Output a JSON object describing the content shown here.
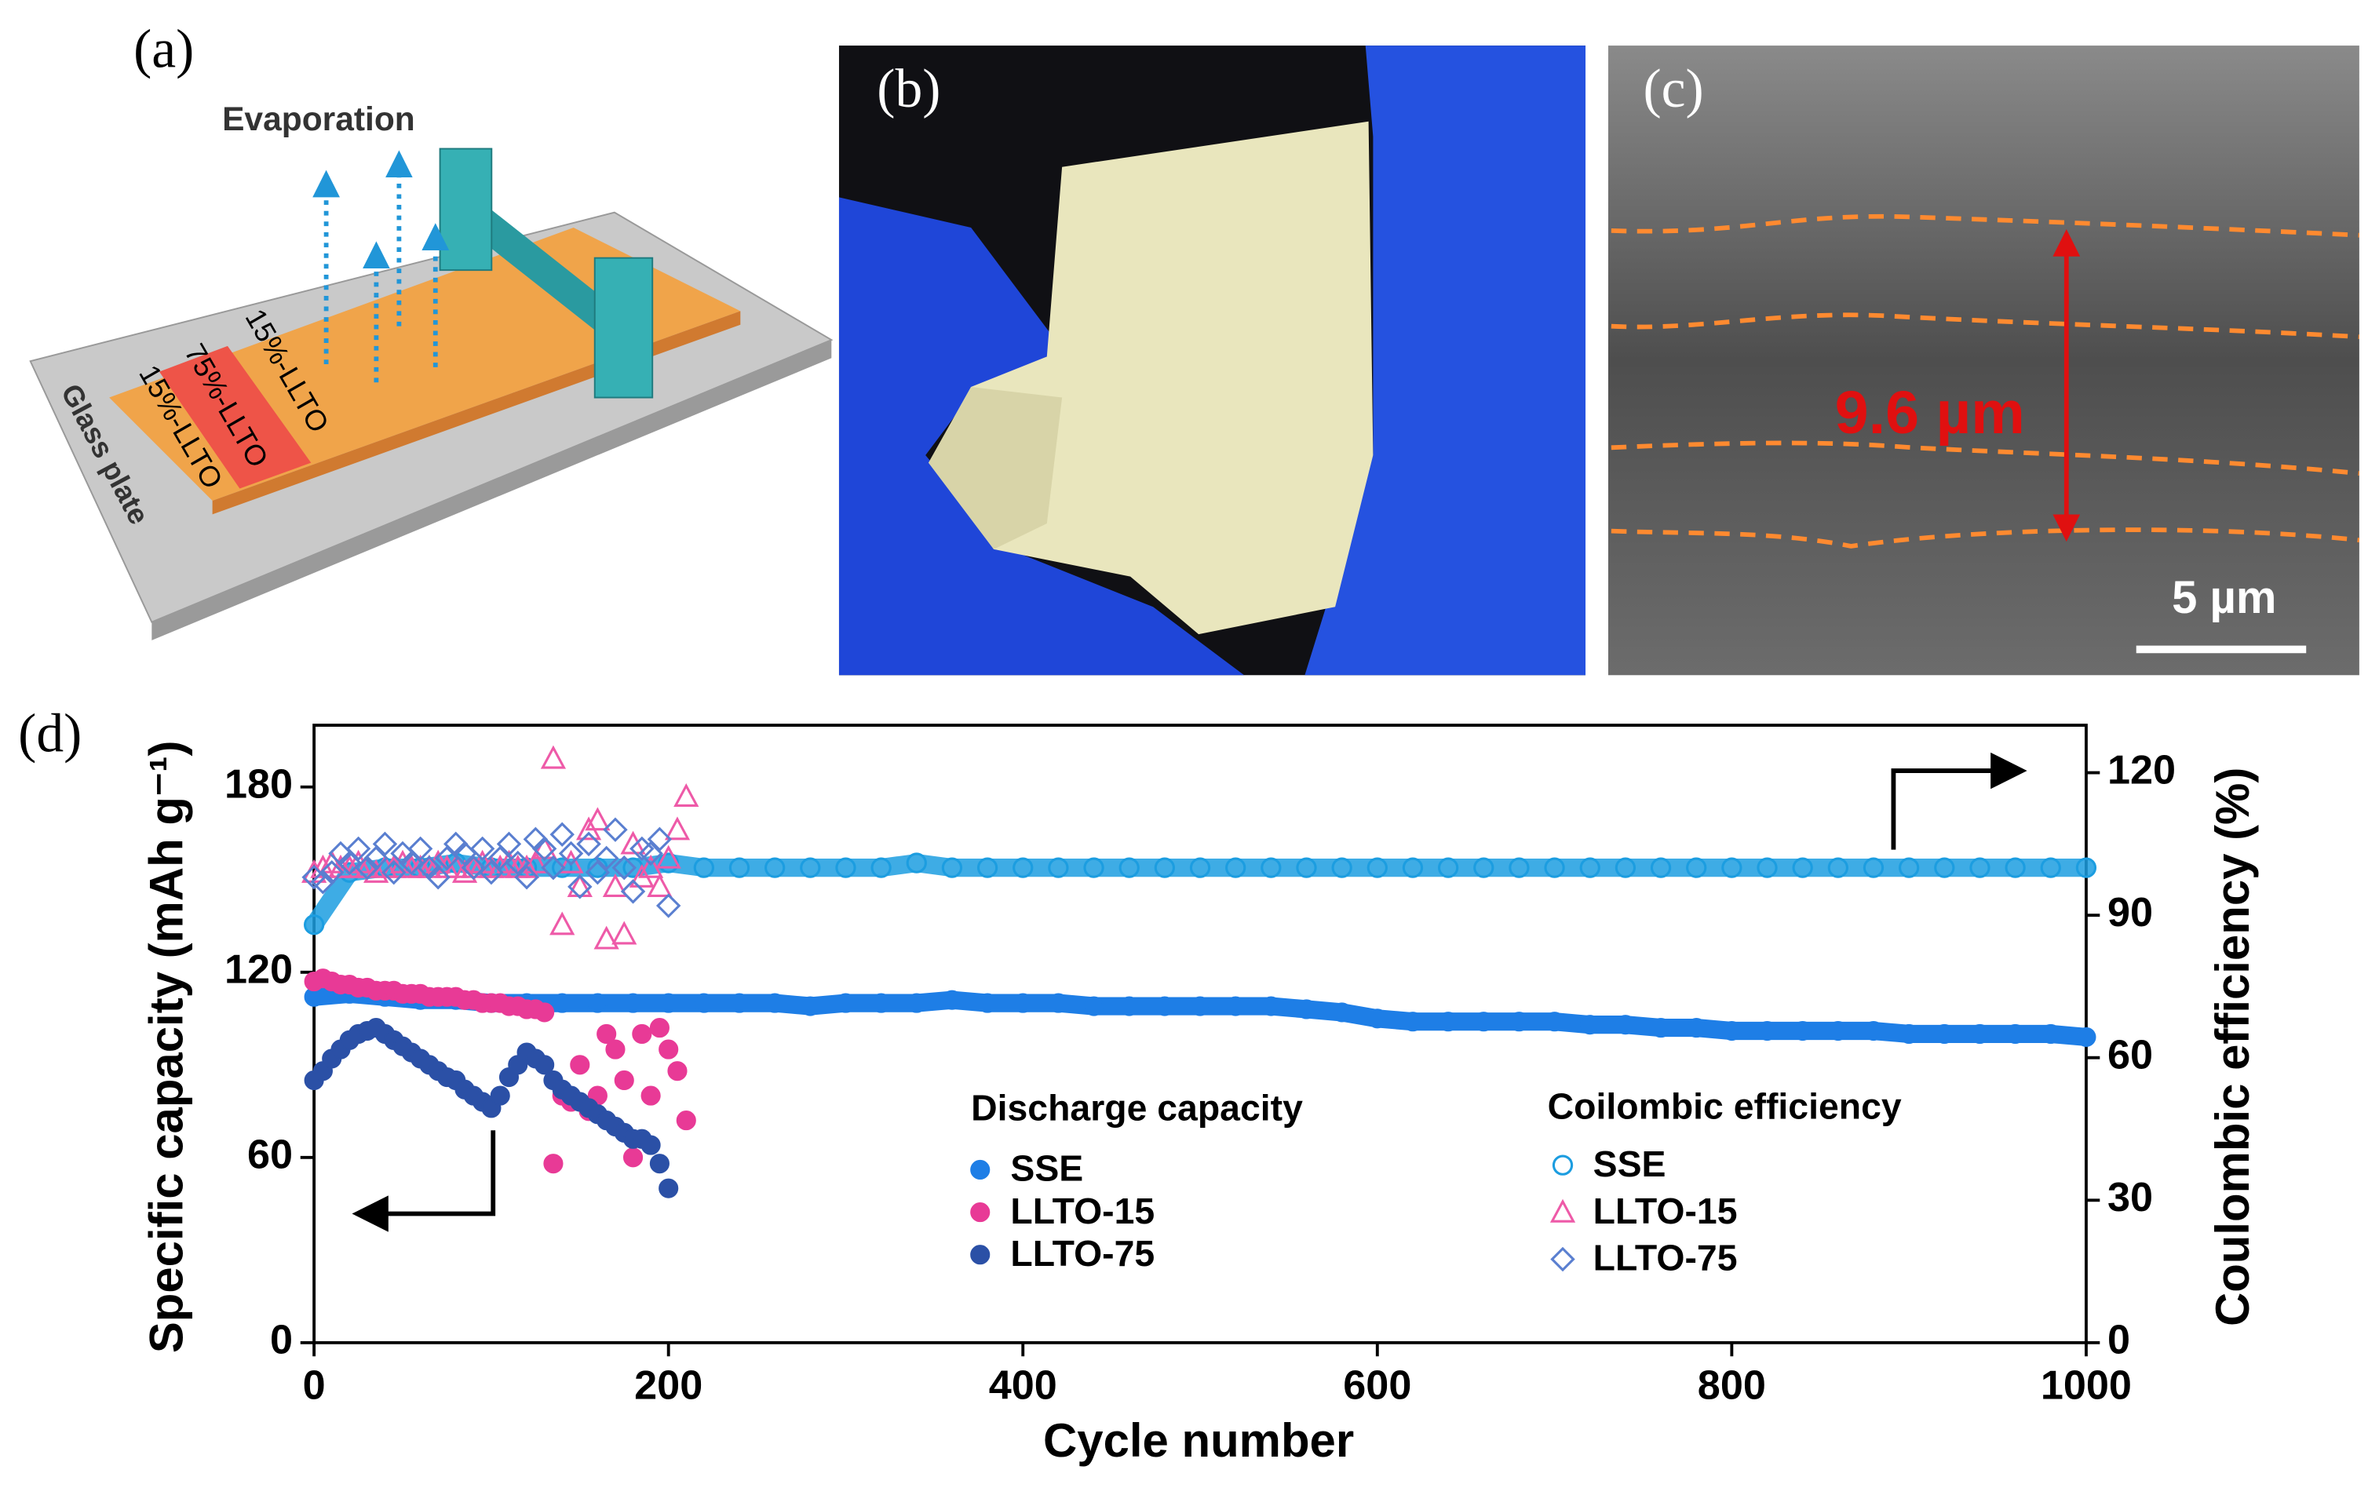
{
  "panels": {
    "a": {
      "label": "(a)",
      "evaporation": "Evaporation",
      "layers": [
        "15%-LLTO",
        "75%-LLTO",
        "15%-LLTO"
      ],
      "substrate": "Glass plate"
    },
    "b": {
      "label": "(b)"
    },
    "c": {
      "label": "(c)",
      "thickness": "9.6 µm",
      "scale_bar": "5 µm"
    }
  },
  "chart_data": {
    "type": "scatter",
    "label": "(d)",
    "xlabel": "Cycle number",
    "ylabel": "Specific capacity (mAh g⁻¹)",
    "y2label": "Coulombic efficiency (%)",
    "legend_titles": {
      "y": "Discharge capacity",
      "y2": "Coilombic efficiency"
    },
    "xlim": [
      0,
      1000
    ],
    "xticks": [
      0,
      200,
      400,
      600,
      800,
      1000
    ],
    "ylim": [
      0,
      200
    ],
    "yticks": [
      0,
      60,
      120,
      180
    ],
    "y2lim": [
      0,
      130
    ],
    "y2ticks": [
      0,
      30,
      60,
      90,
      120
    ],
    "series": [
      {
        "name": "SSE",
        "color": "#1e7ee6",
        "marker": "circle",
        "filled": true,
        "axis": "y",
        "x": [
          0,
          20,
          40,
          60,
          80,
          100,
          120,
          140,
          160,
          180,
          200,
          220,
          240,
          260,
          280,
          300,
          320,
          340,
          360,
          380,
          400,
          420,
          440,
          460,
          480,
          500,
          520,
          540,
          560,
          580,
          600,
          620,
          640,
          660,
          680,
          700,
          720,
          740,
          760,
          780,
          800,
          820,
          840,
          860,
          880,
          900,
          920,
          940,
          960,
          980,
          1000
        ],
        "values": [
          112,
          113,
          112,
          111,
          111,
          110,
          110,
          110,
          110,
          110,
          110,
          110,
          110,
          110,
          109,
          110,
          110,
          110,
          111,
          110,
          110,
          110,
          109,
          109,
          109,
          109,
          109,
          109,
          108,
          107,
          105,
          104,
          104,
          104,
          104,
          104,
          103,
          103,
          102,
          102,
          101,
          101,
          101,
          101,
          101,
          100,
          100,
          100,
          100,
          100,
          99
        ]
      },
      {
        "name": "LLTO-15",
        "color": "#e83a96",
        "marker": "circle",
        "filled": true,
        "axis": "y",
        "x": [
          0,
          5,
          10,
          15,
          20,
          25,
          30,
          35,
          40,
          45,
          50,
          55,
          60,
          65,
          70,
          75,
          80,
          85,
          90,
          95,
          100,
          105,
          110,
          115,
          120,
          125,
          130,
          135,
          140,
          145,
          150,
          155,
          160,
          165,
          170,
          175,
          180,
          185,
          190,
          195,
          200,
          205,
          210
        ],
        "values": [
          117,
          118,
          117,
          116,
          116,
          115,
          115,
          114,
          114,
          114,
          113,
          113,
          113,
          112,
          112,
          112,
          112,
          111,
          111,
          110,
          110,
          110,
          109,
          109,
          108,
          108,
          107,
          58,
          80,
          78,
          90,
          75,
          80,
          100,
          95,
          85,
          60,
          100,
          80,
          102,
          95,
          88,
          72
        ]
      },
      {
        "name": "LLTO-75",
        "color": "#2b50a6",
        "marker": "circle",
        "filled": true,
        "axis": "y",
        "x": [
          0,
          5,
          10,
          15,
          20,
          25,
          30,
          35,
          40,
          45,
          50,
          55,
          60,
          65,
          70,
          75,
          80,
          85,
          90,
          95,
          100,
          105,
          110,
          115,
          120,
          125,
          130,
          135,
          140,
          145,
          150,
          155,
          160,
          165,
          170,
          175,
          180,
          185,
          190,
          195,
          200
        ],
        "values": [
          85,
          88,
          92,
          95,
          98,
          100,
          101,
          102,
          100,
          98,
          96,
          94,
          92,
          90,
          88,
          86,
          85,
          82,
          80,
          78,
          76,
          80,
          86,
          90,
          94,
          92,
          90,
          85,
          82,
          80,
          78,
          76,
          74,
          72,
          70,
          68,
          66,
          66,
          64,
          58,
          50
        ]
      },
      {
        "name": "SSE",
        "color": "#1c9de0",
        "marker": "circle",
        "filled": false,
        "axis": "y2",
        "x": [
          0,
          20,
          40,
          60,
          80,
          100,
          120,
          140,
          160,
          180,
          200,
          220,
          240,
          260,
          280,
          300,
          320,
          340,
          360,
          380,
          400,
          420,
          440,
          460,
          480,
          500,
          520,
          540,
          560,
          580,
          600,
          620,
          640,
          660,
          680,
          700,
          720,
          740,
          760,
          780,
          800,
          820,
          840,
          860,
          880,
          900,
          920,
          940,
          960,
          980,
          1000
        ],
        "values": [
          88,
          99,
          100,
          100,
          101,
          100,
          100,
          100,
          100,
          100,
          101,
          100,
          100,
          100,
          100,
          100,
          100,
          101,
          100,
          100,
          100,
          100,
          100,
          100,
          100,
          100,
          100,
          100,
          100,
          100,
          100,
          100,
          100,
          100,
          100,
          100,
          100,
          100,
          100,
          100,
          100,
          100,
          100,
          100,
          100,
          100,
          100,
          100,
          100,
          100,
          100
        ]
      },
      {
        "name": "LLTO-15",
        "color": "#ee5aa8",
        "marker": "triangle",
        "filled": false,
        "axis": "y2",
        "x": [
          0,
          5,
          10,
          15,
          20,
          25,
          30,
          35,
          40,
          45,
          50,
          55,
          60,
          65,
          70,
          75,
          80,
          85,
          90,
          95,
          100,
          105,
          110,
          115,
          120,
          125,
          130,
          135,
          140,
          145,
          150,
          155,
          160,
          165,
          170,
          175,
          180,
          185,
          190,
          195,
          200,
          205,
          210
        ],
        "values": [
          99,
          100,
          101,
          100,
          100,
          101,
          100,
          99,
          100,
          100,
          101,
          100,
          100,
          100,
          101,
          100,
          100,
          99,
          100,
          101,
          100,
          100,
          101,
          100,
          100,
          101,
          104,
          123,
          88,
          101,
          96,
          108,
          110,
          85,
          96,
          86,
          105,
          98,
          100,
          96,
          102,
          108,
          115
        ]
      },
      {
        "name": "LLTO-75",
        "color": "#5a7fd0",
        "marker": "diamond",
        "filled": false,
        "axis": "y2",
        "x": [
          0,
          5,
          10,
          15,
          20,
          25,
          30,
          35,
          40,
          45,
          50,
          55,
          60,
          65,
          70,
          75,
          80,
          85,
          90,
          95,
          100,
          105,
          110,
          115,
          120,
          125,
          130,
          135,
          140,
          145,
          150,
          155,
          160,
          165,
          170,
          175,
          180,
          185,
          190,
          195,
          200
        ],
        "values": [
          98,
          97,
          99,
          103,
          101,
          104,
          100,
          102,
          105,
          99,
          103,
          101,
          104,
          100,
          98,
          102,
          105,
          103,
          100,
          104,
          99,
          102,
          105,
          101,
          98,
          106,
          104,
          100,
          107,
          103,
          96,
          105,
          99,
          102,
          108,
          100,
          95,
          104,
          103,
          106,
          92
        ]
      }
    ]
  }
}
